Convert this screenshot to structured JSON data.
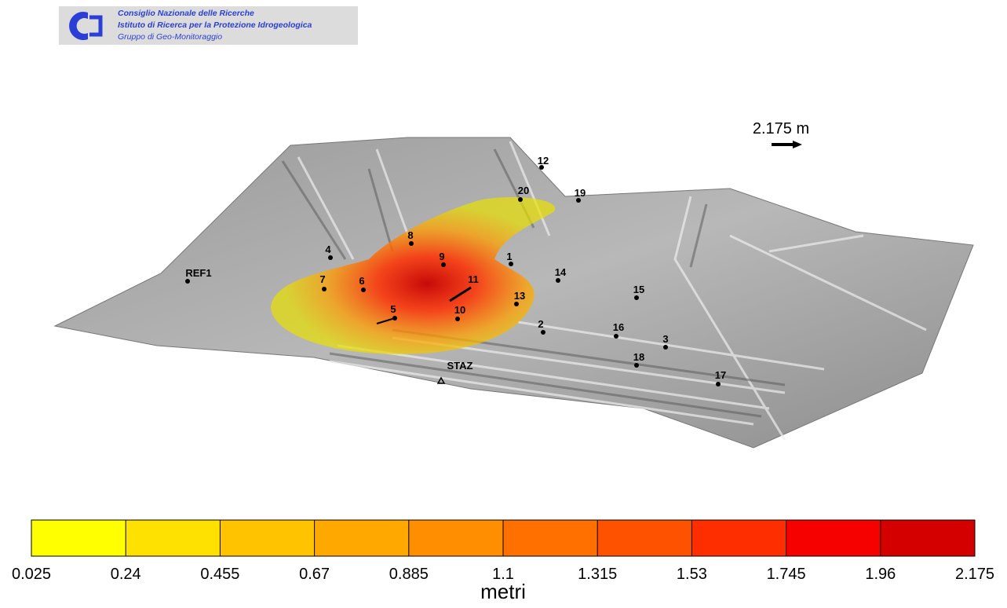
{
  "header": {
    "lines": [
      "Consiglio Nazionale delle Ricerche",
      "Istituto di Ricerca per la Protezione Idrogeologica",
      "Gruppo di Geo-Monitoraggio"
    ]
  },
  "scale": {
    "label": "2.175 m"
  },
  "points": [
    "12",
    "20",
    "19",
    "8",
    "4",
    "9",
    "1",
    "REF1",
    "14",
    "7",
    "6",
    "11",
    "15",
    "13",
    "5",
    "10",
    "2",
    "16",
    "3",
    "18",
    "17",
    "STAZ"
  ],
  "colorbar": {
    "ticks": [
      0.025,
      0.24,
      0.455,
      0.67,
      0.885,
      1.1,
      1.315,
      1.53,
      1.745,
      1.96,
      2.175
    ],
    "colors": [
      "#ffff00",
      "#ffe100",
      "#ffc300",
      "#ffa900",
      "#ff8f00",
      "#ff7000",
      "#ff5200",
      "#ff2e00",
      "#f60000",
      "#d40000"
    ],
    "label": "metri"
  }
}
